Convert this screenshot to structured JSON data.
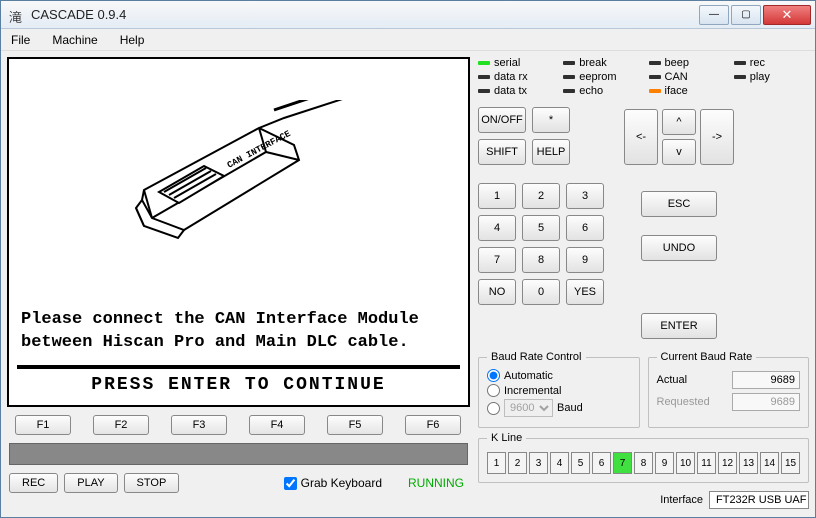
{
  "window": {
    "icon_glyph": "滝",
    "title": "CASCADE 0.9.4"
  },
  "menu": {
    "file": "File",
    "machine": "Machine",
    "help": "Help"
  },
  "screen": {
    "device_label": "CAN INTERFACE",
    "message_l1": "Please connect the CAN Interface Module",
    "message_l2": "between Hiscan Pro and Main DLC cable.",
    "prompt": "PRESS  ENTER  TO  CONTINUE"
  },
  "fkeys": [
    "F1",
    "F2",
    "F3",
    "F4",
    "F5",
    "F6"
  ],
  "rec_controls": {
    "rec": "REC",
    "play": "PLAY",
    "stop": "STOP"
  },
  "grab_keyboard_label": "Grab Keyboard",
  "grab_keyboard_checked": true,
  "status_text": "RUNNING",
  "status_color": "#00aa00",
  "leds": [
    {
      "name": "serial",
      "color": "#20e020"
    },
    {
      "name": "break",
      "color": "#303030"
    },
    {
      "name": "beep",
      "color": "#303030"
    },
    {
      "name": "rec",
      "color": "#303030"
    },
    {
      "name": "data rx",
      "color": "#303030"
    },
    {
      "name": "eeprom",
      "color": "#303030"
    },
    {
      "name": "CAN",
      "color": "#303030"
    },
    {
      "name": "play",
      "color": "#303030"
    },
    {
      "name": "data tx",
      "color": "#303030"
    },
    {
      "name": "echo",
      "color": "#303030"
    },
    {
      "name": "iface",
      "color": "#ff8000"
    }
  ],
  "keypad": {
    "onoff": "ON/OFF",
    "star": "*",
    "shift": "SHIFT",
    "help": "HELP",
    "n1": "1",
    "n2": "2",
    "n3": "3",
    "n4": "4",
    "n5": "5",
    "n6": "6",
    "n7": "7",
    "n8": "8",
    "n9": "9",
    "n0": "0",
    "no": "NO",
    "yes": "YES",
    "left": "<-",
    "up": "^",
    "right": "->",
    "down": "v",
    "esc": "ESC",
    "undo": "UNDO",
    "enter": "ENTER"
  },
  "baud_rate": {
    "legend": "Baud Rate Control",
    "automatic": "Automatic",
    "incremental": "Incremental",
    "manual_value": "9600",
    "baud_suffix": "Baud",
    "selected": "automatic"
  },
  "current_baud": {
    "legend": "Current Baud Rate",
    "actual_label": "Actual",
    "actual_value": "9689",
    "requested_label": "Requested",
    "requested_value": "9689"
  },
  "kline": {
    "legend": "K Line",
    "count": 15,
    "active": 7
  },
  "interface": {
    "label": "Interface",
    "value": "FT232R USB UAF"
  }
}
